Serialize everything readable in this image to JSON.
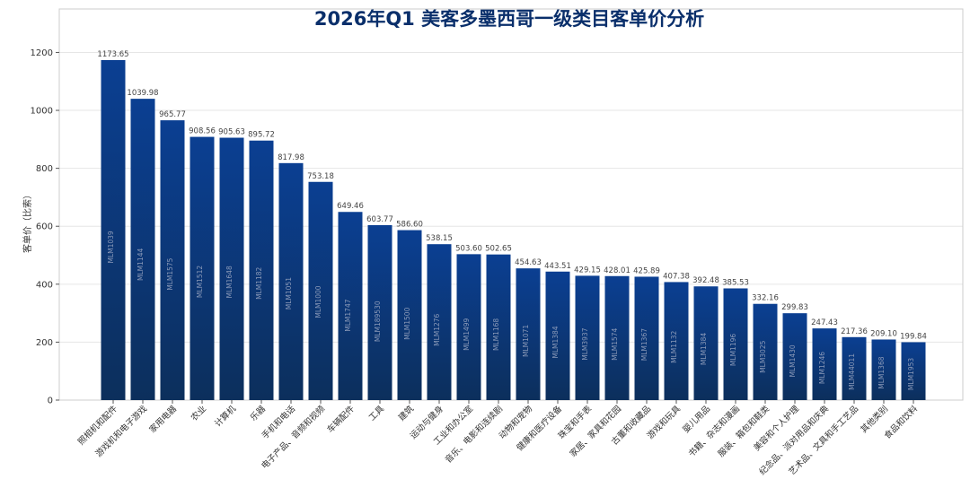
{
  "chart_data": {
    "type": "bar",
    "title": "2026年Q1 美客多墨西哥一级类目客单价分析",
    "xlabel": "",
    "ylabel": "客单价（比索）",
    "ylim": [
      0,
      1350
    ],
    "yticks": [
      0,
      200,
      400,
      600,
      800,
      1000,
      1200
    ],
    "grid": true,
    "legend": "none",
    "colors": {
      "bar_start": "#0b3f92",
      "bar_end": "#0c2f5c",
      "title": "#0a2f6b"
    },
    "categories": [
      "照相机和配件",
      "游戏机和电子游戏",
      "家用电器",
      "农业",
      "计算机",
      "乐器",
      "手机和电话",
      "电子产品、音频和视频",
      "车辆配件",
      "工具",
      "建筑",
      "运动与健身",
      "工业和办公室",
      "音乐、电影和连续剧",
      "动物和宠物",
      "健康和医疗设备",
      "珠宝和手表",
      "家居、家具和花园",
      "古董和收藏品",
      "游戏和玩具",
      "婴儿用品",
      "书籍、杂志和漫画",
      "服装、箱包和鞋类",
      "美容和个人护理",
      "纪念品、派对用品和庆典",
      "艺术品、文具和手工艺品",
      "其他类别",
      "食品和饮料"
    ],
    "codes": [
      "MLM1039",
      "MLM1144",
      "MLM1575",
      "MLM1512",
      "MLM1648",
      "MLM1182",
      "MLM1051",
      "MLM1000",
      "MLM1747",
      "MLM189530",
      "MLM1500",
      "MLM1276",
      "MLM1499",
      "MLM1168",
      "MLM1071",
      "MLM1384",
      "MLM3937",
      "MLM1574",
      "MLM1367",
      "MLM1132",
      "MLM1384",
      "MLM1196",
      "MLM3025",
      "MLM1430",
      "MLM1246",
      "MLM44011",
      "MLM1368",
      "MLM1953"
    ],
    "values": [
      1173.65,
      1039.98,
      965.77,
      908.56,
      905.63,
      895.72,
      817.98,
      753.18,
      649.46,
      603.77,
      586.6,
      538.15,
      503.6,
      502.65,
      454.63,
      443.51,
      429.15,
      428.01,
      425.89,
      407.38,
      392.48,
      385.53,
      332.16,
      299.83,
      247.43,
      217.36,
      209.1,
      199.84
    ],
    "value_labels": [
      "1173.65",
      "1039.98",
      "965.77",
      "908.56",
      "905.63",
      "895.72",
      "817.98",
      "753.18",
      "649.46",
      "603.77",
      "586.60",
      "538.15",
      "503.60",
      "502.65",
      "454.63",
      "443.51",
      "429.15",
      "428.01",
      "425.89",
      "407.38",
      "392.48",
      "385.53",
      "332.16",
      "299.83",
      "247.43",
      "217.36",
      "209.10",
      "199.84"
    ]
  }
}
